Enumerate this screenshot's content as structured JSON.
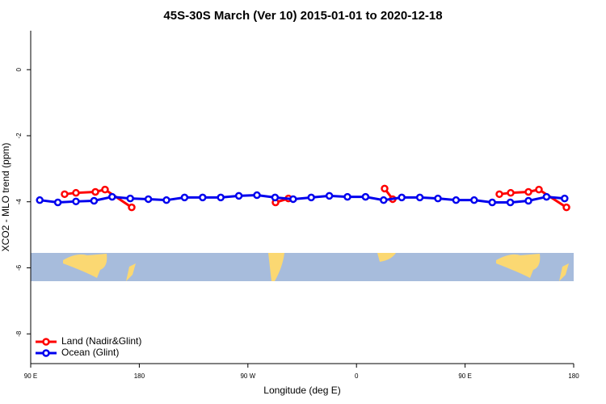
{
  "chart_data": {
    "type": "line",
    "title": "45S-30S March (Ver 10)   2015-01-01 to 2020-12-18",
    "x_label": "Longitude (deg E)",
    "y_label": "XCO2 - MLO trend (ppm)",
    "xlim": [
      90,
      540
    ],
    "xticks": [
      {
        "value": 90,
        "label": "90 E"
      },
      {
        "value": 180,
        "label": "180"
      },
      {
        "value": 270,
        "label": "90 W"
      },
      {
        "value": 360,
        "label": "0"
      },
      {
        "value": 450,
        "label": "90 E"
      },
      {
        "value": 540,
        "label": "180"
      }
    ],
    "ylim": [
      -8.9,
      1.18
    ],
    "yticks": [
      0,
      -2,
      -4,
      -6,
      -8
    ],
    "legend": "bottom-left",
    "series": [
      {
        "name": "Land (Nadir&Glint)",
        "color": "#ff0000",
        "x": [
          118.1,
          127.5,
          143.6,
          151.6,
          173.7,
          null,
          292.9,
          303.6,
          null,
          383.3,
          390,
          null,
          478.4,
          487.8,
          502.5,
          511.2,
          534
        ],
        "values": [
          -3.77,
          -3.73,
          -3.7,
          -3.63,
          -4.17,
          null,
          -4.02,
          -3.9,
          null,
          -3.6,
          -3.92,
          null,
          -3.77,
          -3.73,
          -3.7,
          -3.63,
          -4.17
        ]
      },
      {
        "name": "Ocean (Glint)",
        "color": "#0000ee",
        "x": [
          97.5,
          112.5,
          127.5,
          142.5,
          157.5,
          172.5,
          187.5,
          202.5,
          217.5,
          232.5,
          247.5,
          262.5,
          277.5,
          292.5,
          307.5,
          322.5,
          337.5,
          352.5,
          367.5,
          382.5,
          397.5,
          412.5,
          427.5,
          442.5,
          457.5,
          472.5,
          487.5,
          502.5,
          517.5,
          532.5
        ],
        "values": [
          -3.95,
          -4.02,
          -3.99,
          -3.97,
          -3.85,
          -3.9,
          -3.92,
          -3.95,
          -3.87,
          -3.87,
          -3.87,
          -3.82,
          -3.8,
          -3.87,
          -3.92,
          -3.87,
          -3.82,
          -3.85,
          -3.85,
          -3.95,
          -3.87,
          -3.87,
          -3.9,
          -3.95,
          -3.95,
          -4.02,
          -4.02,
          -3.97,
          -3.85,
          -3.9
        ]
      }
    ]
  }
}
